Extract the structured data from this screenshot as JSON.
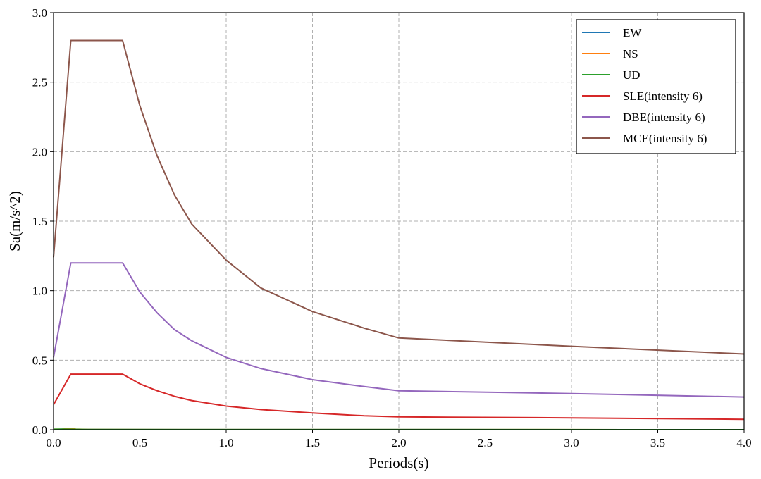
{
  "chart_data": {
    "type": "line",
    "xlabel": "Periods(s)",
    "ylabel": "Sa(m/s^2)",
    "xlim": [
      0,
      4
    ],
    "ylim": [
      0,
      3
    ],
    "xticks": [
      "0.0",
      "0.5",
      "1.0",
      "1.5",
      "2.0",
      "2.5",
      "3.0",
      "3.5",
      "4.0"
    ],
    "yticks": [
      "0.0",
      "0.5",
      "1.0",
      "1.5",
      "2.0",
      "2.5",
      "3.0"
    ],
    "grid": true,
    "legend_position": "top-right",
    "series": [
      {
        "name": "EW",
        "color": "#1f77b4",
        "x": [
          0,
          0.05,
          0.1,
          0.15,
          4.0
        ],
        "y": [
          0.002,
          0.003,
          0.002,
          0.001,
          0.0
        ]
      },
      {
        "name": "NS",
        "color": "#ff7f0e",
        "x": [
          0,
          0.05,
          0.08,
          0.1,
          0.13,
          0.2,
          4.0
        ],
        "y": [
          0.003,
          0.004,
          0.007,
          0.008,
          0.004,
          0.001,
          0.0
        ]
      },
      {
        "name": "UD",
        "color": "#2ca02c",
        "x": [
          0,
          0.05,
          0.1,
          0.2,
          4.0
        ],
        "y": [
          0.003,
          0.004,
          0.003,
          0.001,
          0.0
        ]
      },
      {
        "name": "SLE(intensity 6)",
        "color": "#d62728",
        "x": [
          0,
          0.1,
          0.4,
          0.5,
          0.6,
          0.7,
          0.8,
          1.0,
          1.2,
          1.5,
          1.8,
          2.0,
          3.0,
          4.0
        ],
        "y": [
          0.18,
          0.4,
          0.4,
          0.33,
          0.28,
          0.24,
          0.21,
          0.17,
          0.145,
          0.12,
          0.1,
          0.092,
          0.085,
          0.075
        ]
      },
      {
        "name": "DBE(intensity 6)",
        "color": "#9467bd",
        "x": [
          0,
          0.1,
          0.4,
          0.5,
          0.6,
          0.7,
          0.8,
          1.0,
          1.2,
          1.5,
          1.8,
          2.0,
          3.0,
          4.0
        ],
        "y": [
          0.52,
          1.2,
          1.2,
          0.99,
          0.84,
          0.72,
          0.64,
          0.52,
          0.44,
          0.36,
          0.31,
          0.28,
          0.26,
          0.235
        ]
      },
      {
        "name": "MCE(intensity 6)",
        "color": "#8c564b",
        "x": [
          0,
          0.1,
          0.4,
          0.5,
          0.6,
          0.7,
          0.8,
          1.0,
          1.2,
          1.5,
          1.8,
          2.0,
          3.0,
          4.0
        ],
        "y": [
          1.24,
          2.8,
          2.8,
          2.33,
          1.97,
          1.69,
          1.48,
          1.22,
          1.02,
          0.85,
          0.73,
          0.66,
          0.6,
          0.545
        ]
      }
    ]
  }
}
